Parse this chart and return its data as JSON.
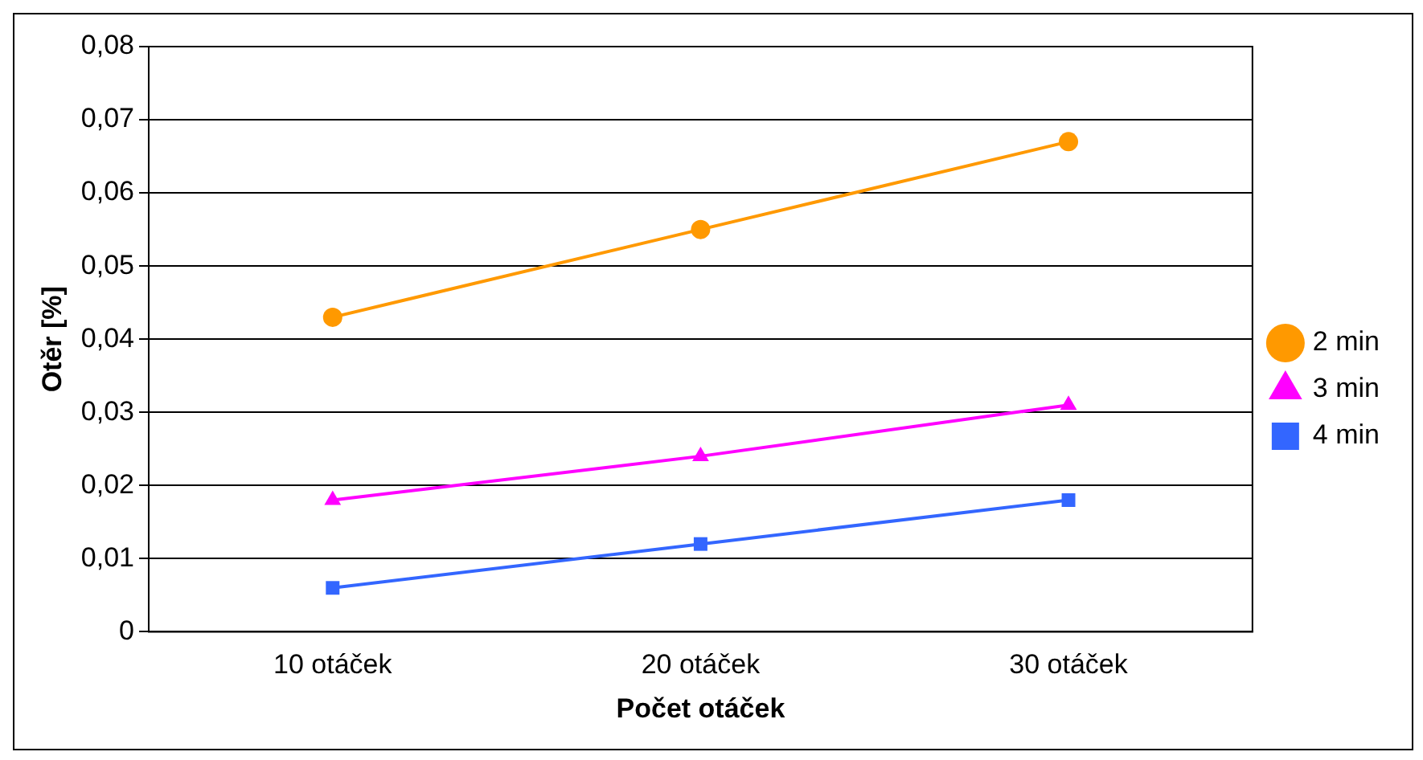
{
  "chart_data": {
    "type": "line",
    "xlabel": "Počet otáček",
    "ylabel": "Otěr [%]",
    "categories": [
      "10 otáček",
      "20 otáček",
      "30 otáček"
    ],
    "series": [
      {
        "name": "2 min",
        "color": "#ff9900",
        "marker": "circle",
        "values": [
          0.043,
          0.055,
          0.067
        ]
      },
      {
        "name": "3 min",
        "color": "#ff00ff",
        "marker": "triangle",
        "values": [
          0.018,
          0.024,
          0.031
        ]
      },
      {
        "name": "4 min",
        "color": "#3366ff",
        "marker": "square",
        "values": [
          0.006,
          0.012,
          0.018
        ]
      }
    ],
    "ylim": [
      0,
      0.08
    ],
    "yticks": [
      0,
      {
        "value": 0.01,
        "label": "0,01"
      },
      {
        "value": 0.02,
        "label": "0,02"
      },
      {
        "value": 0.03,
        "label": "0,03"
      },
      {
        "value": 0.04,
        "label": "0,04"
      },
      {
        "value": 0.05,
        "label": "0,05"
      },
      {
        "value": 0.06,
        "label": "0,06"
      },
      {
        "value": 0.07,
        "label": "0,07"
      },
      {
        "value": 0.08,
        "label": "0,08"
      }
    ],
    "grid": "y",
    "legend": "right"
  }
}
